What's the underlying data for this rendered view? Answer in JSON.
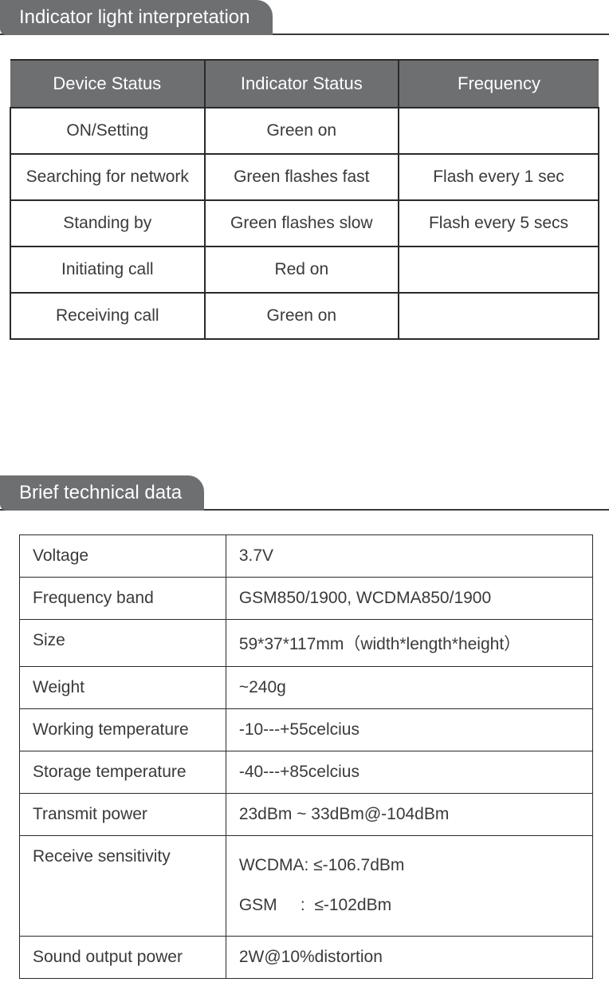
{
  "section1": {
    "title": "Indicator light interpretation",
    "columns": [
      "Device Status",
      "Indicator Status",
      "Frequency"
    ],
    "rows": [
      [
        "ON/Setting",
        "Green on",
        ""
      ],
      [
        "Searching for network",
        "Green flashes fast",
        "Flash every 1 sec"
      ],
      [
        "Standing by",
        "Green flashes slow",
        "Flash every 5 secs"
      ],
      [
        "Initiating call",
        "Red on",
        ""
      ],
      [
        "Receiving call",
        "Green on",
        ""
      ]
    ]
  },
  "section2": {
    "title": "Brief technical data",
    "rows": [
      [
        "Voltage",
        "3.7V"
      ],
      [
        "Frequency band",
        "GSM850/1900, WCDMA850/1900"
      ],
      [
        "Size",
        "59*37*117mm（width*length*height）"
      ],
      [
        "Weight",
        "~240g"
      ],
      [
        "Working temperature",
        "-10---+55celcius"
      ],
      [
        "Storage temperature",
        "-40---+85celcius"
      ],
      [
        "Transmit power",
        "23dBm ~ 33dBm@-104dBm"
      ],
      [
        "Receive  sensitivity",
        "WCDMA: ≤-106.7dBm\nGSM     :  ≤-102dBm"
      ],
      [
        "Sound output power",
        "2W@10%distortion"
      ]
    ]
  },
  "colors": {
    "header_bg": "#6e6f70",
    "header_text": "#ffffff",
    "body_text": "#3a3a3a",
    "border": "#2a2a2a"
  },
  "typography": {
    "header_fontsize": 24,
    "table_header_fontsize": 22,
    "cell_fontsize": 21
  }
}
